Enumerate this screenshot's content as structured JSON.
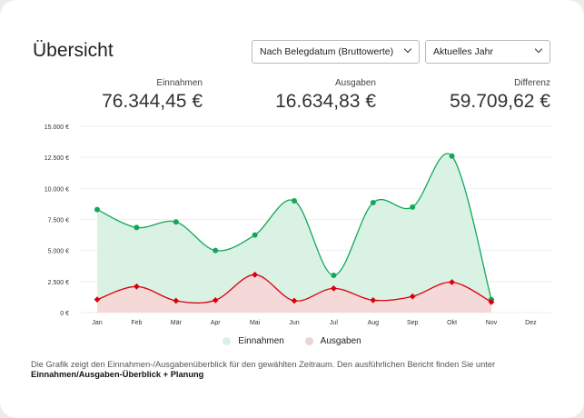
{
  "header": {
    "title": "Übersicht",
    "sort_select": "Nach Belegdatum (Bruttowerte)",
    "period_select": "Aktuelles Jahr"
  },
  "kpis": [
    {
      "label": "Einnahmen",
      "value": "76.344,45 €"
    },
    {
      "label": "Ausgaben",
      "value": "16.634,83 €"
    },
    {
      "label": "Differenz",
      "value": "59.709,62 €"
    }
  ],
  "chart_data": {
    "type": "area",
    "categories": [
      "Jan",
      "Feb",
      "Mär",
      "Apr",
      "Mai",
      "Jun",
      "Jul",
      "Aug",
      "Sep",
      "Okt",
      "Nov",
      "Dez"
    ],
    "ylim": [
      0,
      15000
    ],
    "yticks": [
      0,
      2500,
      5000,
      7500,
      10000,
      12500,
      15000
    ],
    "ytick_labels": [
      "0 €",
      "2.500 €",
      "5.000 €",
      "7.500 €",
      "10.000 €",
      "12.500 €",
      "15.000 €"
    ],
    "grid": true,
    "legend": "bottom",
    "series": [
      {
        "name": "Einnahmen",
        "color": "#12a85a",
        "fill": "#d8f1e2",
        "values": [
          8300,
          6850,
          7300,
          5000,
          6250,
          9000,
          3000,
          8850,
          8500,
          12600,
          1050,
          null
        ]
      },
      {
        "name": "Ausgaben",
        "color": "#d9000e",
        "fill": "#f7d7d7",
        "values": [
          1050,
          2100,
          950,
          1000,
          3050,
          950,
          1950,
          1000,
          1300,
          2450,
          850,
          null
        ]
      }
    ]
  },
  "legend": {
    "colors": [
      "#dcefe6",
      "#ead8d0"
    ]
  },
  "footer": {
    "description": "Die Grafik zeigt den Einnahmen-/Ausgabenüberblick für den gewählten Zeitraum. Den ausführlichen Bericht finden Sie unter",
    "link": "Einnahmen/Ausgaben-Überblick + Planung"
  }
}
